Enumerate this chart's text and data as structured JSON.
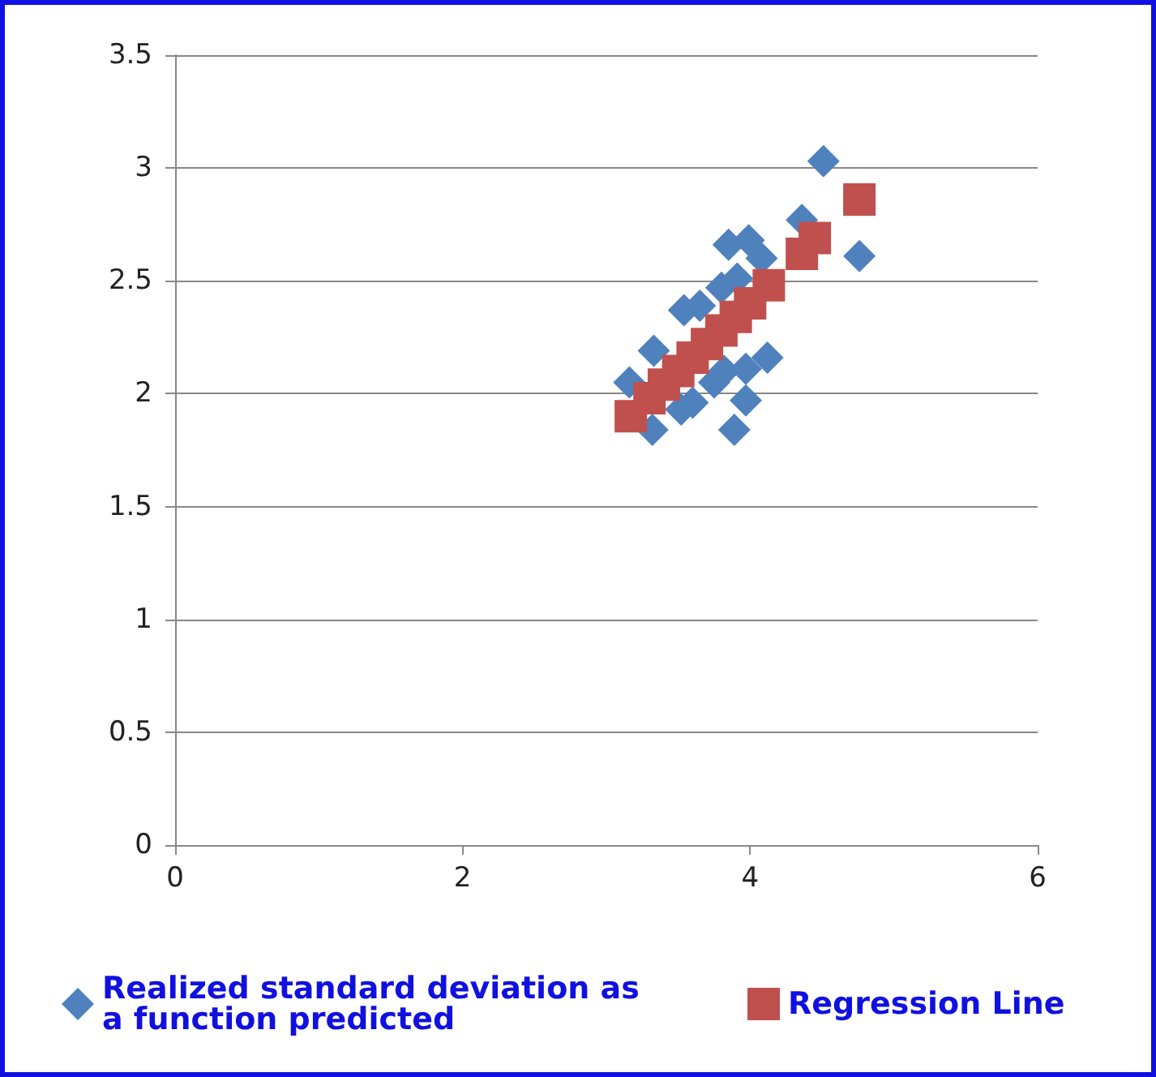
{
  "chart_data": {
    "type": "scatter",
    "xlim": [
      0,
      6
    ],
    "xticks": [
      0,
      2,
      4,
      6
    ],
    "ylim": [
      0,
      3.5
    ],
    "yticks": [
      0,
      0.5,
      1,
      1.5,
      2,
      2.5,
      3,
      3.5
    ],
    "grid": "y",
    "legend": "bottom",
    "series": [
      {
        "name": "Realized standard deviation as a function predicted",
        "color": "#4f81bd",
        "marker": "diamond",
        "x": [
          4.51,
          4.36,
          4.76,
          3.85,
          3.99,
          4.08,
          3.91,
          3.8,
          3.54,
          3.65,
          3.33,
          3.16,
          4.12,
          3.97,
          3.82,
          3.97,
          3.89,
          3.32,
          3.6,
          3.52,
          3.75
        ],
        "values": [
          3.03,
          2.77,
          2.61,
          2.66,
          2.68,
          2.6,
          2.51,
          2.47,
          2.37,
          2.39,
          2.19,
          2.05,
          2.16,
          2.11,
          2.1,
          1.97,
          1.84,
          1.84,
          1.96,
          1.93,
          2.05
        ]
      },
      {
        "name": "Regression Line",
        "color": "#c0504d",
        "marker": "square",
        "x": [
          3.17,
          3.3,
          3.4,
          3.5,
          3.6,
          3.7,
          3.8,
          3.9,
          4.0,
          4.13,
          4.36,
          4.45,
          4.76
        ],
        "values": [
          1.9,
          1.98,
          2.04,
          2.1,
          2.16,
          2.22,
          2.28,
          2.34,
          2.4,
          2.48,
          2.62,
          2.69,
          2.86
        ]
      }
    ]
  }
}
